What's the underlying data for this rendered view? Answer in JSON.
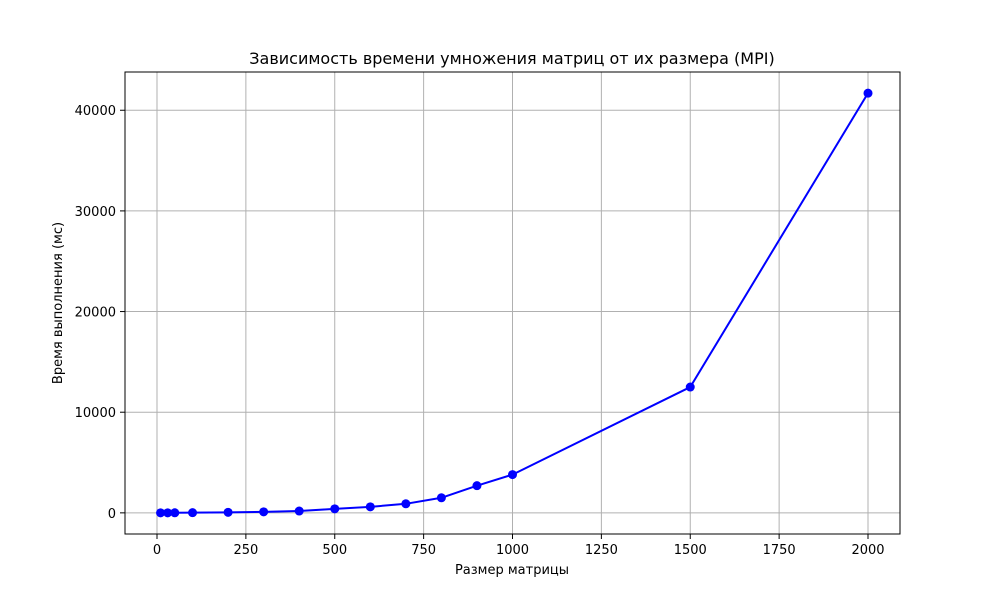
{
  "chart_data": {
    "type": "line",
    "title": "Зависимость времени умножения матриц от их размера (MPI)",
    "xlabel": "Размер матрицы",
    "ylabel": "Время выполнения (мс)",
    "xlim": [
      -90,
      2090
    ],
    "ylim": [
      -2100,
      43800
    ],
    "x_ticks": [
      0,
      250,
      500,
      750,
      1000,
      1250,
      1500,
      1750,
      2000
    ],
    "y_ticks": [
      0,
      10000,
      20000,
      30000,
      40000
    ],
    "grid": true,
    "series": [
      {
        "color": "#0000ff",
        "marker": "circle",
        "x": [
          10,
          30,
          50,
          100,
          200,
          300,
          400,
          500,
          600,
          700,
          800,
          900,
          1000,
          1500,
          2000
        ],
        "y": [
          0,
          2,
          5,
          20,
          50,
          100,
          180,
          400,
          600,
          900,
          1500,
          2700,
          3800,
          12500,
          41700
        ]
      }
    ]
  }
}
